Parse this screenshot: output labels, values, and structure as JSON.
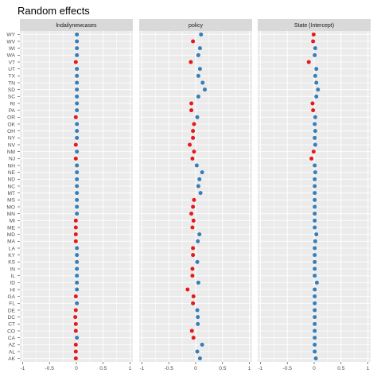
{
  "chart_data": {
    "type": "scatter",
    "title": "Random effects",
    "xlim": [
      -1.05,
      1.05
    ],
    "x_ticks": [
      "-1",
      "-0.5",
      "0",
      "0.5",
      "1"
    ],
    "x_tick_values": [
      -1,
      -0.5,
      0,
      0.5,
      1
    ],
    "grid": true,
    "legend": "none",
    "colors": {
      "negative": "#e41a1c",
      "positive": "#377eb8",
      "panel_bg": "#ebebeb",
      "strip_bg": "#d9d9d9",
      "grid": "#ffffff"
    },
    "states": [
      "WY",
      "WV",
      "WI",
      "WA",
      "VT",
      "UT",
      "TX",
      "TN",
      "SD",
      "SC",
      "RI",
      "PA",
      "OR",
      "OK",
      "OH",
      "NY",
      "NV",
      "NM",
      "NJ",
      "NH",
      "NE",
      "ND",
      "NC",
      "MT",
      "MS",
      "MO",
      "MN",
      "MI",
      "ME",
      "MD",
      "MA",
      "LA",
      "KY",
      "KS",
      "IN",
      "IL",
      "ID",
      "HI",
      "GA",
      "FL",
      "DE",
      "DC",
      "CT",
      "CO",
      "CA",
      "AZ",
      "AL",
      "AK"
    ],
    "panels": [
      {
        "label": "lndailynewcases",
        "values": [
          0.01,
          0.01,
          0.01,
          0.01,
          -0.01,
          0.01,
          0.01,
          0.01,
          0.01,
          0.01,
          0.01,
          0.01,
          -0.01,
          0.01,
          0.01,
          0.01,
          -0.01,
          0.01,
          -0.01,
          0.01,
          0.01,
          0.01,
          0.01,
          0.01,
          0.01,
          0.01,
          0.01,
          -0.01,
          -0.01,
          -0.01,
          -0.01,
          0.01,
          0.01,
          0.01,
          0.01,
          0.01,
          0.01,
          0.01,
          -0.01,
          0.01,
          -0.01,
          -0.02,
          -0.01,
          -0.01,
          0.01,
          -0.01,
          -0.01,
          -0.01
        ]
      },
      {
        "label": "policy",
        "values": [
          0.1,
          -0.05,
          0.08,
          0.05,
          -0.09,
          0.08,
          0.05,
          0.13,
          0.17,
          0.05,
          -0.08,
          -0.08,
          0.03,
          -0.03,
          -0.05,
          -0.05,
          -0.11,
          -0.03,
          -0.06,
          0.02,
          0.12,
          0.07,
          0.05,
          0.09,
          -0.03,
          -0.05,
          -0.08,
          -0.04,
          -0.06,
          0.07,
          0.04,
          -0.05,
          -0.05,
          0.03,
          -0.06,
          -0.06,
          0.05,
          -0.15,
          -0.04,
          -0.05,
          0.03,
          0.04,
          0.04,
          -0.07,
          -0.04,
          0.12,
          0.03,
          0.08
        ]
      },
      {
        "label": "State (Intercept)",
        "values": [
          -0.01,
          -0.02,
          0.02,
          0.01,
          -0.1,
          0.04,
          0.02,
          0.04,
          0.07,
          0.04,
          -0.03,
          -0.02,
          0.02,
          0.01,
          0.02,
          0.01,
          0.02,
          -0.01,
          -0.05,
          0.01,
          0.02,
          0.01,
          0.01,
          0.01,
          0.01,
          0.01,
          0.01,
          0.01,
          0.01,
          0.04,
          0.02,
          0.01,
          0.01,
          0.01,
          0.01,
          0.01,
          0.05,
          0.01,
          0.01,
          0.01,
          0.01,
          0.01,
          0.01,
          0.01,
          0.01,
          0.01,
          0.01,
          0.03
        ]
      }
    ]
  }
}
